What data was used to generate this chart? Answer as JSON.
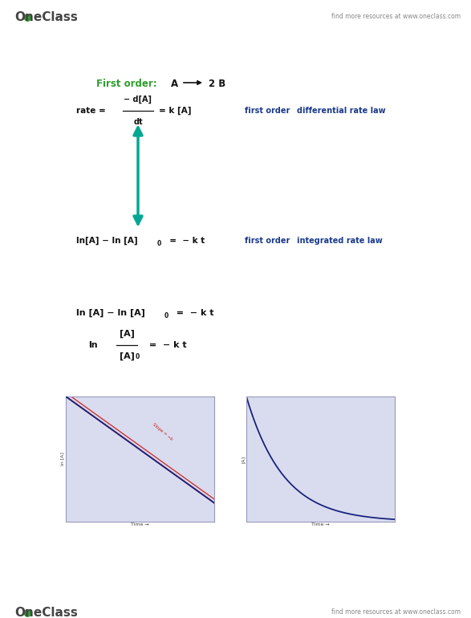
{
  "bg_color": "#ffffff",
  "header_logo_text": "OneClass",
  "header_right_text": "find more resources at www.oneclass.com",
  "footer_logo_text": "OneClass",
  "footer_right_text": "find more resources at www.oneclass.com",
  "first_order_label": "First order:",
  "green_color": "#2e9e2e",
  "dark_blue": "#1a237e",
  "mid_blue": "#1a3a8a",
  "arrow_color": "#00A893",
  "graph_bg": "#d8dcee",
  "graph_line_color": "#1a237e",
  "graph_red_line": "#cc2222",
  "graph_border": "#9999bb",
  "text_black": "#111111",
  "header_gray": "#888888",
  "oneclass_gray": "#444444"
}
